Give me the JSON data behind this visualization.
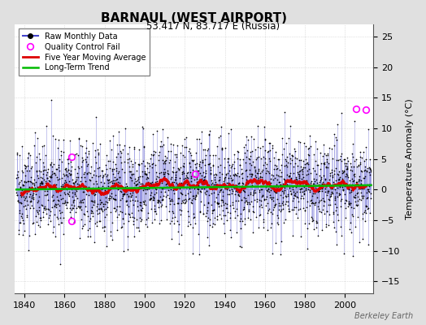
{
  "title": "BARNAUL (WEST AIRPORT)",
  "subtitle": "53.417 N, 83.717 E (Russia)",
  "ylabel": "Temperature Anomaly (°C)",
  "watermark": "Berkeley Earth",
  "year_start": 1836,
  "year_end": 2013,
  "ylim": [
    -17,
    27
  ],
  "yticks": [
    -15,
    -10,
    -5,
    0,
    5,
    10,
    15,
    20,
    25
  ],
  "xticks": [
    1840,
    1860,
    1880,
    1900,
    1920,
    1940,
    1960,
    1980,
    2000
  ],
  "bg_color": "#e0e0e0",
  "plot_bg_color": "#ffffff",
  "line_color": "#4444cc",
  "stem_color": "#8888dd",
  "marker_color": "#000000",
  "moving_avg_color": "#dd0000",
  "trend_color": "#00bb00",
  "qc_fail_color": "#ff00ff",
  "seed": 42,
  "n_months": 2136,
  "noise_std": 3.8,
  "trend_slope": 0.004,
  "qc_fail_points": [
    [
      2005.5,
      13.0
    ],
    [
      2010.0,
      13.5
    ],
    [
      1863.5,
      5.5
    ],
    [
      1863.5,
      -5.5
    ],
    [
      1925.0,
      2.0
    ]
  ]
}
